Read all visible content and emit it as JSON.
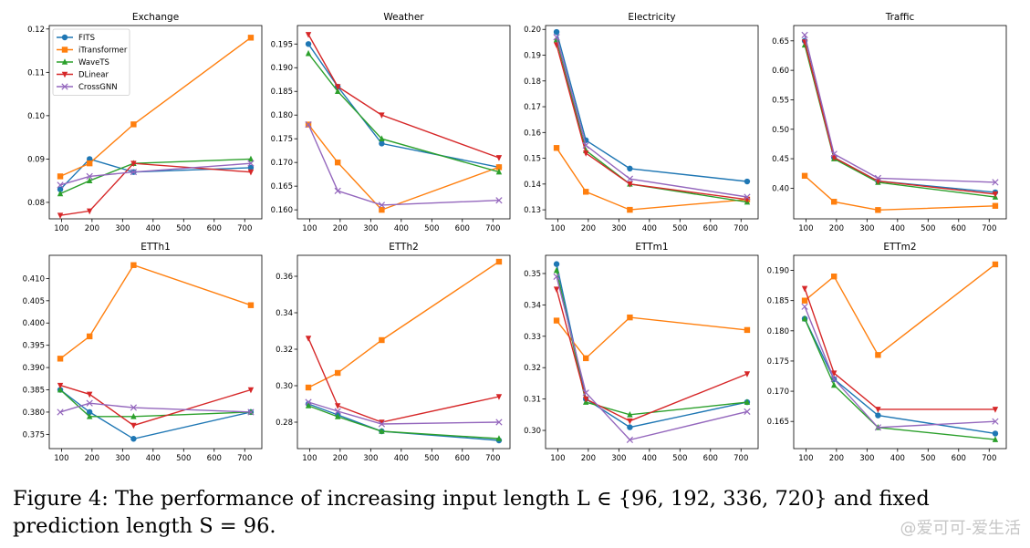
{
  "caption": "Figure 4: The performance of increasing input length L ∈ {96, 192, 336, 720} and fixed prediction length S = 96.",
  "watermark": "@爱可可-爱生活",
  "series_styles": [
    {
      "name": "FITS",
      "color": "#1f77b4",
      "marker": "circle"
    },
    {
      "name": "iTransformer",
      "color": "#ff7f0e",
      "marker": "square"
    },
    {
      "name": "WaveTS",
      "color": "#2ca02c",
      "marker": "triangle-up"
    },
    {
      "name": "DLinear",
      "color": "#d62728",
      "marker": "triangle-down"
    },
    {
      "name": "CrossGNN",
      "color": "#9467bd",
      "marker": "x"
    }
  ],
  "chart_data": [
    {
      "type": "line",
      "title": "Exchange",
      "x": [
        96,
        192,
        336,
        720
      ],
      "xticks": [
        100,
        200,
        300,
        400,
        500,
        600,
        700
      ],
      "xlim": [
        60,
        756
      ],
      "ylim": [
        0.0762,
        0.1208
      ],
      "yticks": [
        0.08,
        0.09,
        0.1,
        0.11,
        0.12
      ],
      "ytick_labels": [
        "0.08",
        "0.09",
        "0.10",
        "0.11",
        "0.12"
      ],
      "legend": "top-left",
      "series": [
        {
          "name": "FITS",
          "values": [
            0.083,
            0.09,
            0.087,
            0.088
          ]
        },
        {
          "name": "iTransformer",
          "values": [
            0.086,
            0.089,
            0.098,
            0.118
          ]
        },
        {
          "name": "WaveTS",
          "values": [
            0.082,
            0.085,
            0.089,
            0.09
          ]
        },
        {
          "name": "DLinear",
          "values": [
            0.077,
            0.078,
            0.089,
            0.087
          ]
        },
        {
          "name": "CrossGNN",
          "values": [
            0.084,
            0.086,
            0.087,
            0.089
          ]
        }
      ]
    },
    {
      "type": "line",
      "title": "Weather",
      "x": [
        96,
        192,
        336,
        720
      ],
      "xticks": [
        100,
        200,
        300,
        400,
        500,
        600,
        700
      ],
      "xlim": [
        60,
        756
      ],
      "ylim": [
        0.1581,
        0.1989
      ],
      "yticks": [
        0.16,
        0.165,
        0.17,
        0.175,
        0.18,
        0.185,
        0.19,
        0.195
      ],
      "ytick_labels": [
        "0.160",
        "0.165",
        "0.170",
        "0.175",
        "0.180",
        "0.185",
        "0.190",
        "0.195"
      ],
      "series": [
        {
          "name": "FITS",
          "values": [
            0.195,
            0.186,
            0.174,
            0.169
          ]
        },
        {
          "name": "iTransformer",
          "values": [
            0.178,
            0.17,
            0.16,
            0.169
          ]
        },
        {
          "name": "WaveTS",
          "values": [
            0.193,
            0.185,
            0.175,
            0.168
          ]
        },
        {
          "name": "DLinear",
          "values": [
            0.197,
            0.186,
            0.18,
            0.171
          ]
        },
        {
          "name": "CrossGNN",
          "values": [
            0.178,
            0.164,
            0.161,
            0.162
          ]
        }
      ]
    },
    {
      "type": "line",
      "title": "Electricity",
      "x": [
        96,
        192,
        336,
        720
      ],
      "xticks": [
        100,
        200,
        300,
        400,
        500,
        600,
        700
      ],
      "xlim": [
        60,
        756
      ],
      "ylim": [
        0.1265,
        0.2015
      ],
      "yticks": [
        0.13,
        0.14,
        0.15,
        0.16,
        0.17,
        0.18,
        0.19,
        0.2
      ],
      "ytick_labels": [
        "0.13",
        "0.14",
        "0.15",
        "0.16",
        "0.17",
        "0.18",
        "0.19",
        "0.20"
      ],
      "series": [
        {
          "name": "FITS",
          "values": [
            0.199,
            0.157,
            0.146,
            0.141
          ]
        },
        {
          "name": "iTransformer",
          "values": [
            0.154,
            0.137,
            0.13,
            0.134
          ]
        },
        {
          "name": "WaveTS",
          "values": [
            0.196,
            0.153,
            0.14,
            0.133
          ]
        },
        {
          "name": "DLinear",
          "values": [
            0.194,
            0.152,
            0.14,
            0.134
          ]
        },
        {
          "name": "CrossGNN",
          "values": [
            0.197,
            0.155,
            0.142,
            0.135
          ]
        }
      ]
    },
    {
      "type": "line",
      "title": "Traffic",
      "x": [
        96,
        192,
        336,
        720
      ],
      "xticks": [
        100,
        200,
        300,
        400,
        500,
        600,
        700
      ],
      "xlim": [
        60,
        756
      ],
      "ylim": [
        0.348,
        0.676
      ],
      "yticks": [
        0.4,
        0.45,
        0.5,
        0.55,
        0.6,
        0.65
      ],
      "ytick_labels": [
        "0.40",
        "0.45",
        "0.50",
        "0.55",
        "0.60",
        "0.65"
      ],
      "series": [
        {
          "name": "FITS",
          "values": [
            0.65,
            0.452,
            0.412,
            0.393
          ]
        },
        {
          "name": "iTransformer",
          "values": [
            0.421,
            0.377,
            0.363,
            0.37
          ]
        },
        {
          "name": "WaveTS",
          "values": [
            0.643,
            0.45,
            0.41,
            0.385
          ]
        },
        {
          "name": "DLinear",
          "values": [
            0.648,
            0.452,
            0.412,
            0.39
          ]
        },
        {
          "name": "CrossGNN",
          "values": [
            0.66,
            0.458,
            0.417,
            0.41
          ]
        }
      ]
    },
    {
      "type": "line",
      "title": "ETTh1",
      "x": [
        96,
        192,
        336,
        720
      ],
      "xticks": [
        100,
        200,
        300,
        400,
        500,
        600,
        700
      ],
      "xlim": [
        60,
        756
      ],
      "ylim": [
        0.3718,
        0.4152
      ],
      "yticks": [
        0.375,
        0.38,
        0.385,
        0.39,
        0.395,
        0.4,
        0.405,
        0.41
      ],
      "ytick_labels": [
        "0.375",
        "0.380",
        "0.385",
        "0.390",
        "0.395",
        "0.400",
        "0.405",
        "0.410"
      ],
      "series": [
        {
          "name": "FITS",
          "values": [
            0.385,
            0.38,
            0.374,
            0.38
          ]
        },
        {
          "name": "iTransformer",
          "values": [
            0.392,
            0.397,
            0.413,
            0.404
          ]
        },
        {
          "name": "WaveTS",
          "values": [
            0.385,
            0.379,
            0.379,
            0.38
          ]
        },
        {
          "name": "DLinear",
          "values": [
            0.386,
            0.384,
            0.377,
            0.385
          ]
        },
        {
          "name": "CrossGNN",
          "values": [
            0.38,
            0.382,
            0.381,
            0.38
          ]
        }
      ]
    },
    {
      "type": "line",
      "title": "ETTh2",
      "x": [
        96,
        192,
        336,
        720
      ],
      "xticks": [
        100,
        200,
        300,
        400,
        500,
        600,
        700
      ],
      "xlim": [
        60,
        756
      ],
      "ylim": [
        0.2655,
        0.3715
      ],
      "yticks": [
        0.28,
        0.3,
        0.32,
        0.34,
        0.36
      ],
      "ytick_labels": [
        "0.28",
        "0.30",
        "0.32",
        "0.34",
        "0.36"
      ],
      "series": [
        {
          "name": "FITS",
          "values": [
            0.29,
            0.284,
            0.275,
            0.27
          ]
        },
        {
          "name": "iTransformer",
          "values": [
            0.299,
            0.307,
            0.325,
            0.368
          ]
        },
        {
          "name": "WaveTS",
          "values": [
            0.289,
            0.283,
            0.275,
            0.271
          ]
        },
        {
          "name": "DLinear",
          "values": [
            0.326,
            0.289,
            0.28,
            0.294
          ]
        },
        {
          "name": "CrossGNN",
          "values": [
            0.291,
            0.286,
            0.279,
            0.28
          ]
        }
      ]
    },
    {
      "type": "line",
      "title": "ETTm1",
      "x": [
        96,
        192,
        336,
        720
      ],
      "xticks": [
        100,
        200,
        300,
        400,
        500,
        600,
        700
      ],
      "xlim": [
        60,
        756
      ],
      "ylim": [
        0.2942,
        0.3558
      ],
      "yticks": [
        0.3,
        0.31,
        0.32,
        0.33,
        0.34,
        0.35
      ],
      "ytick_labels": [
        "0.30",
        "0.31",
        "0.32",
        "0.33",
        "0.34",
        "0.35"
      ],
      "series": [
        {
          "name": "FITS",
          "values": [
            0.353,
            0.31,
            0.301,
            0.309
          ]
        },
        {
          "name": "iTransformer",
          "values": [
            0.335,
            0.323,
            0.336,
            0.332
          ]
        },
        {
          "name": "WaveTS",
          "values": [
            0.351,
            0.309,
            0.305,
            0.309
          ]
        },
        {
          "name": "DLinear",
          "values": [
            0.345,
            0.31,
            0.303,
            0.318
          ]
        },
        {
          "name": "CrossGNN",
          "values": [
            0.349,
            0.312,
            0.297,
            0.306
          ]
        }
      ]
    },
    {
      "type": "line",
      "title": "ETTm2",
      "x": [
        96,
        192,
        336,
        720
      ],
      "xticks": [
        100,
        200,
        300,
        400,
        500,
        600,
        700
      ],
      "xlim": [
        60,
        756
      ],
      "ylim": [
        0.1605,
        0.1925
      ],
      "yticks": [
        0.165,
        0.17,
        0.175,
        0.18,
        0.185,
        0.19
      ],
      "ytick_labels": [
        "0.165",
        "0.170",
        "0.175",
        "0.180",
        "0.185",
        "0.190"
      ],
      "series": [
        {
          "name": "FITS",
          "values": [
            0.182,
            0.172,
            0.166,
            0.163
          ]
        },
        {
          "name": "iTransformer",
          "values": [
            0.185,
            0.189,
            0.176,
            0.191
          ]
        },
        {
          "name": "WaveTS",
          "values": [
            0.182,
            0.171,
            0.164,
            0.162
          ]
        },
        {
          "name": "DLinear",
          "values": [
            0.187,
            0.173,
            0.167,
            0.167
          ]
        },
        {
          "name": "CrossGNN",
          "values": [
            0.184,
            0.172,
            0.164,
            0.165
          ]
        }
      ]
    }
  ]
}
